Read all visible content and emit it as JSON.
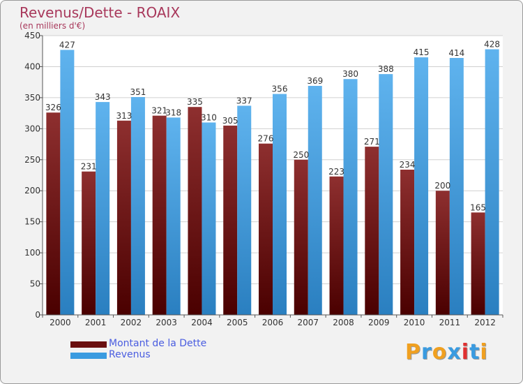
{
  "title": "Revenus/Dette - ROAIX",
  "subtitle": "(en milliers d'€)",
  "logo": {
    "text": "Proxiti",
    "letter_colors": [
      "#f0a020",
      "#3a9be0",
      "#f0a020",
      "#3a9be0",
      "#e03030",
      "#3a9be0",
      "#f0a020"
    ]
  },
  "chart_data": {
    "type": "bar",
    "categories": [
      "2000",
      "2001",
      "2002",
      "2003",
      "2004",
      "2005",
      "2006",
      "2007",
      "2008",
      "2009",
      "2010",
      "2011",
      "2012"
    ],
    "series": [
      {
        "name": "Montant de la Dette",
        "color": "#7a1a1a",
        "values": [
          326,
          231,
          313,
          321,
          335,
          305,
          276,
          250,
          223,
          271,
          234,
          200,
          165
        ]
      },
      {
        "name": "Revenus",
        "color": "#3a9be0",
        "values": [
          427,
          343,
          351,
          318,
          310,
          337,
          356,
          369,
          380,
          388,
          415,
          414,
          428
        ]
      }
    ],
    "ylim": [
      0,
      450
    ],
    "yticks": [
      0,
      50,
      100,
      150,
      200,
      250,
      300,
      350,
      400,
      450
    ],
    "grid": true,
    "legend_position": "bottom-left"
  }
}
